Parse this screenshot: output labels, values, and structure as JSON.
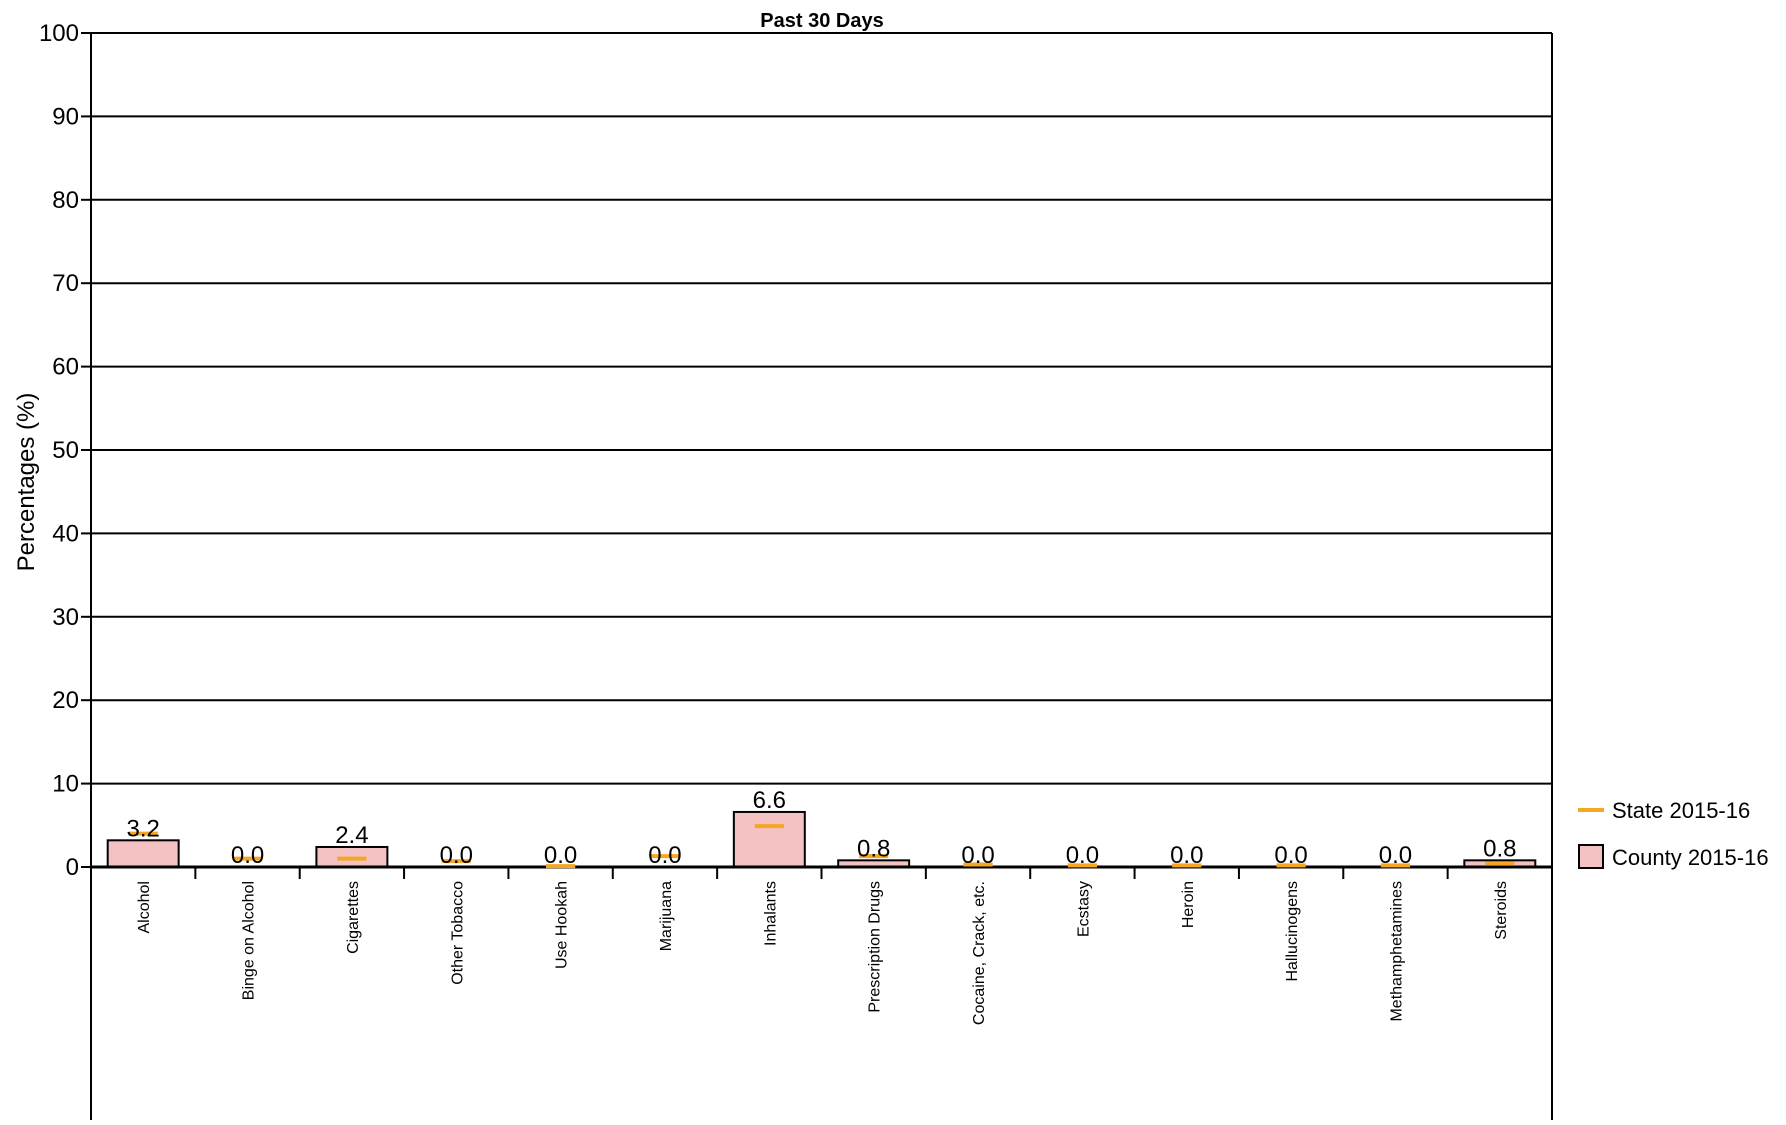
{
  "chart_data": {
    "type": "bar",
    "title": "Past 30 Days",
    "xlabel": "",
    "ylabel": "Percentages (%)",
    "ylim": [
      0,
      100
    ],
    "yticks": [
      "0",
      "10",
      "20",
      "30",
      "40",
      "50",
      "60",
      "70",
      "80",
      "90",
      "100"
    ],
    "grid": true,
    "legend_position": "right",
    "categories": [
      "Alcohol",
      "Binge on Alcohol",
      "Cigarettes",
      "Other Tobacco",
      "Use Hookah",
      "Marijuana",
      "Inhalants",
      "Prescription Drugs",
      "Cocaine, Crack, etc.",
      "Ecstasy",
      "Heroin",
      "Hallucinogens",
      "Methamphetamines",
      "Steroids"
    ],
    "series": [
      {
        "name": "County 2015-16",
        "mark": "bar",
        "color": "#f4c2c2",
        "values": [
          3.2,
          0.0,
          2.4,
          0.0,
          0.0,
          0.0,
          6.6,
          0.8,
          0.0,
          0.0,
          0.0,
          0.0,
          0.0,
          0.8
        ],
        "labels": [
          "3.2",
          "0.0",
          "2.4",
          "0.0",
          "0.0",
          "0.0",
          "6.6",
          "0.8",
          "0.0",
          "0.0",
          "0.0",
          "0.0",
          "0.0",
          "0.8"
        ]
      },
      {
        "name": "State 2015-16",
        "mark": "dash",
        "color": "#f5a623",
        "values": [
          4.0,
          1.0,
          1.0,
          0.7,
          0.1,
          1.3,
          4.9,
          1.3,
          0.3,
          0.2,
          0.2,
          0.2,
          0.2,
          0.4
        ]
      }
    ]
  }
}
